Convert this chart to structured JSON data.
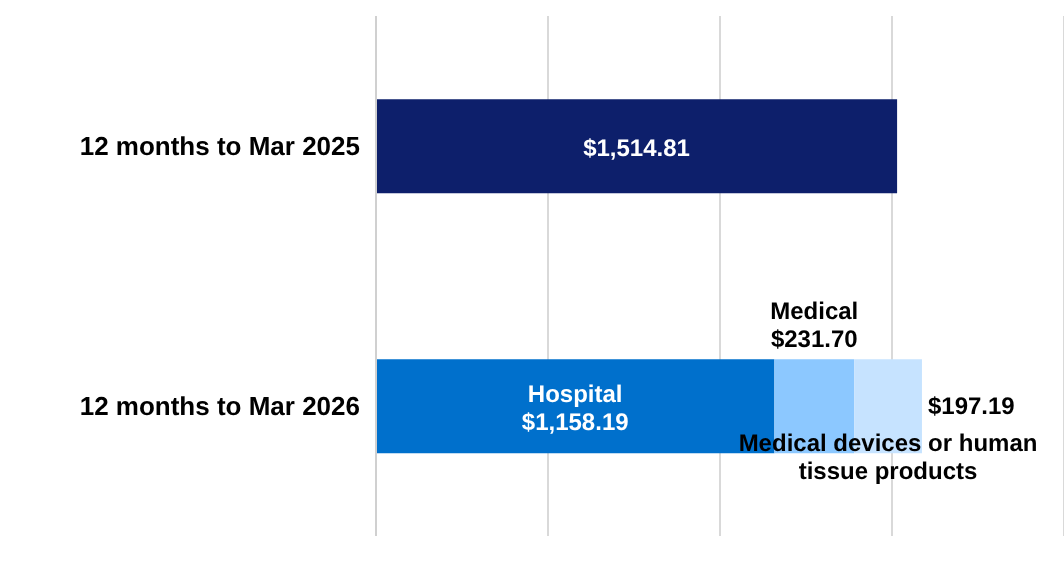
{
  "chart_data": {
    "type": "bar",
    "orientation": "horizontal",
    "stacked": true,
    "categories": [
      "12 months to Mar 2025",
      "12 months to Mar 2026"
    ],
    "xlim": [
      0,
      2000
    ],
    "xticks": [
      {
        "value": 0,
        "label": null
      },
      {
        "value": 500,
        "label": null
      },
      {
        "value": 1000,
        "label": null
      },
      {
        "value": 1500,
        "label": null
      },
      {
        "value": 2000,
        "label": null
      }
    ],
    "tick_labels": "y",
    "grid": "x",
    "legend": false,
    "series": [
      {
        "color": "#0d1f6b",
        "values": [
          1514.81,
          null
        ],
        "value_labels": [
          "$1,514.81",
          null
        ]
      },
      {
        "name": "Hospital",
        "color": "#0070cc",
        "values": [
          null,
          1158.19
        ],
        "value_labels": [
          null,
          "$1,158.19"
        ]
      },
      {
        "name": "Medical",
        "color": "#8cc8ff",
        "values": [
          null,
          231.7
        ],
        "value_labels": [
          null,
          "$231.70"
        ]
      },
      {
        "name": "Medical devices or human tissue products",
        "color": "#c6e3ff",
        "values": [
          null,
          197.19
        ],
        "value_labels": [
          null,
          "$197.19"
        ]
      }
    ]
  }
}
